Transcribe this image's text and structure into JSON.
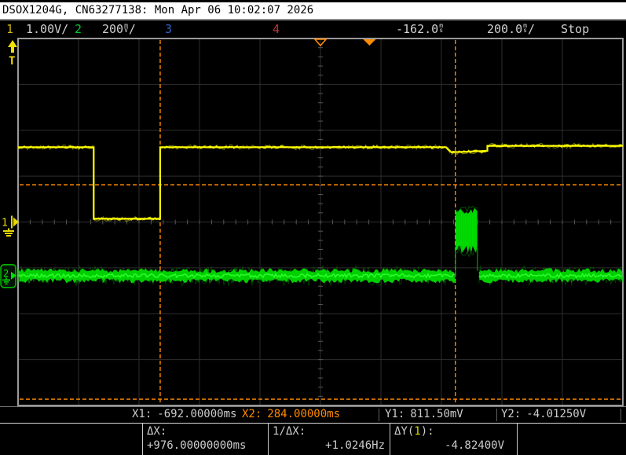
{
  "title_bar": {
    "text": "DSOX1204G, CN63277138: Mon Apr 06 10:02:07 2026"
  },
  "status_bar": {
    "channels": [
      {
        "label": "1",
        "scale": "1.00V/",
        "color": "#c8b414"
      },
      {
        "label": "2",
        "scale_value": "200",
        "unit_top": "m",
        "unit_bot": "V",
        "scale_suffix": "/",
        "color": "#00c832"
      },
      {
        "label": "3",
        "scale": "",
        "color": "#3264c8"
      },
      {
        "label": "4",
        "scale": "",
        "color": "#c03040"
      }
    ],
    "delay": {
      "value": "-162.0",
      "unit_top": "m",
      "unit_bot": "s"
    },
    "timebase": {
      "value": "200.0",
      "unit_top": "m",
      "unit_bot": "s",
      "suffix": "/"
    },
    "run_state": "Stop"
  },
  "markers": {
    "trigger_level_label": "T",
    "ch1_label": "1",
    "ch2_label": "2"
  },
  "readouts": {
    "x1_label": "X1:",
    "x1_value": "-692.00000ms",
    "x2_label": "X2:",
    "x2_value": "284.00000ms",
    "y1_label": "Y1:",
    "y1_value": "811.50mV",
    "y2_label": "Y2:",
    "y2_value": "-4.01250V",
    "dx_label": "ΔX:",
    "dx_value": "+976.00000000ms",
    "invdx_label": "1/ΔX:",
    "invdx_value": "+1.0246Hz",
    "dy_prefix": "ΔY(",
    "dy_channel": "1",
    "dy_suffix": "):",
    "dy_value": "-4.82400V"
  },
  "colors": {
    "ch1_trace": "#ffff00",
    "ch2_trace": "#00e600",
    "cursor": "#ff8a00",
    "grid": "#2e2e2e",
    "x2_text": "#ff8a00",
    "dy_channel_text": "#d8d800"
  },
  "chart_data": {
    "type": "line",
    "title": "Oscilloscope display: CH1 step waveform, CH2 noise floor with burst",
    "x_axis": {
      "unit": "ms",
      "per_div": 200,
      "divs": 10,
      "delay_ms": -162,
      "range_ms": [
        -1162,
        838
      ]
    },
    "y_axis": {
      "divs": 8
    },
    "run_state": "Stop",
    "series": [
      {
        "name": "CH1",
        "color": "#ffff00",
        "volts_per_div": 1.0,
        "ground_div": 4.0,
        "noise_v": 0.05,
        "points_t_ms_v": [
          [
            -1162,
            1.63
          ],
          [
            -912,
            1.63
          ],
          [
            -912,
            0.07
          ],
          [
            -692,
            0.07
          ],
          [
            -692,
            1.63
          ],
          [
            253,
            1.63
          ],
          [
            271,
            1.52
          ],
          [
            390,
            1.55
          ],
          [
            390,
            1.66
          ],
          [
            838,
            1.66
          ]
        ]
      },
      {
        "name": "CH2",
        "color": "#00e600",
        "volts_per_div": 0.2,
        "ground_div": 5.17,
        "segments": [
          {
            "t_ms": [
              -1162,
              284
            ],
            "v": 0,
            "noise_v": 0.045
          },
          {
            "t_ms": [
              284,
              357
            ],
            "v": 0.2,
            "noise_v": 0.09
          },
          {
            "t_ms": [
              362,
              838
            ],
            "v": 0,
            "noise_v": 0.045
          }
        ]
      }
    ],
    "cursors": {
      "x1_ms": -692,
      "x2_ms": 284,
      "y1_v": 0.8115,
      "y2_v": -4.0125,
      "source_channel": 1
    },
    "trigger": {
      "point_ms": 0,
      "time_ref_ms": -162,
      "level": "above display top"
    },
    "measurements": {
      "delta_x_ms": 976,
      "inv_delta_x_hz": 1.0246,
      "delta_y_v": -4.824
    }
  }
}
